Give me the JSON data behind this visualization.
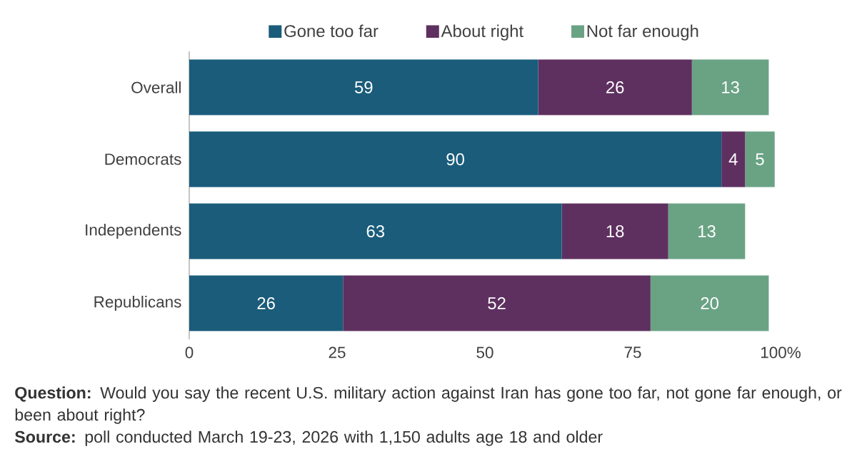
{
  "chart_data": {
    "type": "bar",
    "orientation": "horizontal",
    "stacked": true,
    "data_labels": true,
    "legend": "top",
    "categories": [
      "Overall",
      "Democrats",
      "Independents",
      "Republicans"
    ],
    "series": [
      {
        "name": "Gone too far",
        "color": "#1a5c7a",
        "values": [
          59,
          90,
          63,
          26
        ]
      },
      {
        "name": "About right",
        "color": "#5e3060",
        "values": [
          26,
          4,
          18,
          52
        ]
      },
      {
        "name": "Not far enough",
        "color": "#6aa384",
        "values": [
          13,
          5,
          13,
          20
        ]
      }
    ],
    "xlim": [
      0,
      100
    ],
    "xticks": [
      0,
      25,
      50,
      75,
      {
        "value": 100,
        "label": "100%"
      }
    ],
    "annotations": [
      "**Question:** Would you say the recent U.S. military action against Iran has gone too far, not gone far enough, or been about right?",
      "**Source:** poll conducted March 19-23, 2026 with 1,150 adults age 18 and older"
    ]
  }
}
